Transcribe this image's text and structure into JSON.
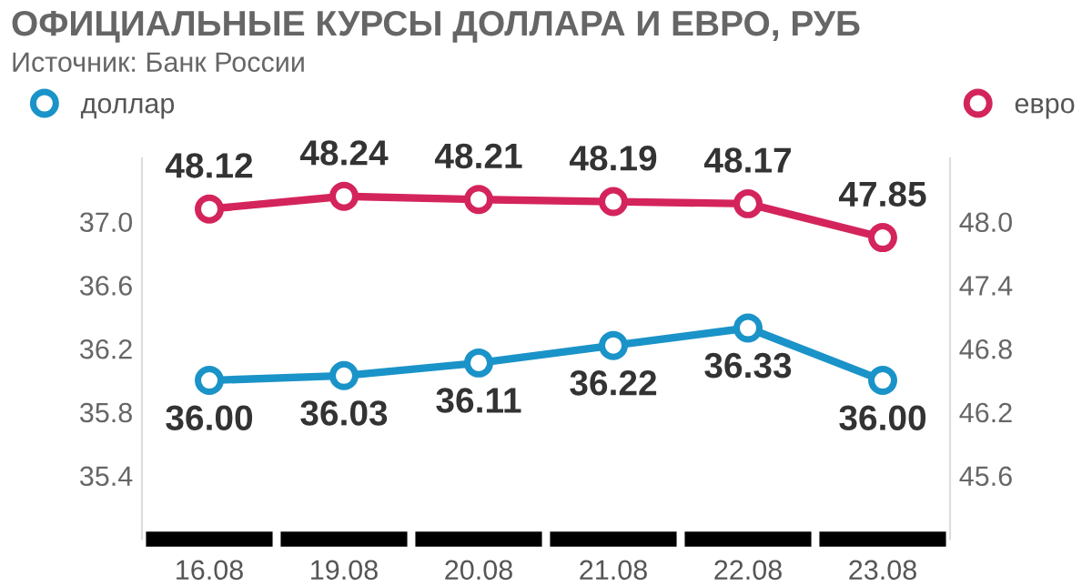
{
  "chart_data": {
    "type": "line",
    "title": "ОФИЦИАЛЬНЫЕ КУРСЫ ДОЛЛАРА И ЕВРО, РУБ",
    "subtitle": "Источник: Банк России",
    "categories": [
      "16.08",
      "19.08",
      "20.08",
      "21.08",
      "22.08",
      "23.08"
    ],
    "series": [
      {
        "name": "доллар",
        "color": "#1a93c8",
        "values": [
          36.0,
          36.03,
          36.11,
          36.22,
          36.33,
          36.0
        ],
        "value_labels": [
          "36.00",
          "36.03",
          "36.11",
          "36.22",
          "36.33",
          "36.00"
        ]
      },
      {
        "name": "евро",
        "color": "#d4245c",
        "axis": "y2",
        "values": [
          48.12,
          48.24,
          48.21,
          48.19,
          48.17,
          47.85
        ],
        "value_labels": [
          "48.12",
          "48.24",
          "48.21",
          "48.19",
          "48.17",
          "47.85"
        ]
      }
    ],
    "ylim": [
      35.0,
      37.4
    ],
    "yticks": [
      35.4,
      35.8,
      36.2,
      36.6,
      {
        "value": 37.0,
        "label": "37.0"
      }
    ],
    "y2lim": [
      45.0,
      48.6
    ],
    "y2ticks": [
      45.6,
      46.2,
      46.8,
      47.4,
      {
        "value": 48.0,
        "label": "48.0"
      }
    ],
    "marker": "circle",
    "line_style": "solid",
    "grid": false,
    "legend": "top"
  }
}
